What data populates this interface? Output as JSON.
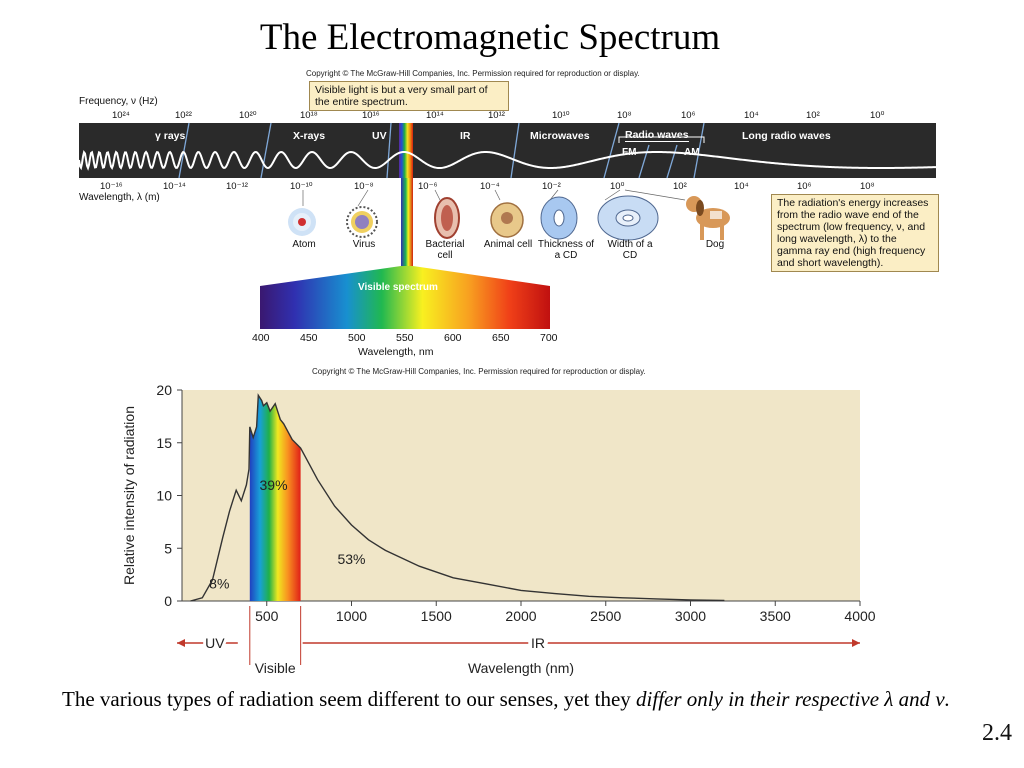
{
  "title": "The Electromagnetic Spectrum",
  "copyright_top": "Copyright © The McGraw-Hill Companies, Inc. Permission required for reproduction or display.",
  "copyright_bottom": "Copyright © The McGraw-Hill Companies, Inc. Permission required for reproduction or display.",
  "visible_note": "Visible light is but a very small part of the entire spectrum.",
  "frequency_label": "Frequency, ν (Hz)",
  "wavelength_label": "Wavelength, λ (m)",
  "frequency_ticks": [
    "10²⁴",
    "10²²",
    "10²⁰",
    "10¹⁸",
    "10¹⁶",
    "10¹⁴",
    "10¹²",
    "10¹⁰",
    "10⁸",
    "10⁶",
    "10⁴",
    "10²",
    "10⁰"
  ],
  "wavelength_ticks": [
    "10⁻¹⁶",
    "10⁻¹⁴",
    "10⁻¹²",
    "10⁻¹⁰",
    "10⁻⁸",
    "10⁻⁶",
    "10⁻⁴",
    "10⁻²",
    "10⁰",
    "10²",
    "10⁴",
    "10⁶",
    "10⁸"
  ],
  "bands": [
    "γ rays",
    "X-rays",
    "UV",
    "IR",
    "Microwaves",
    "Radio waves",
    "Long radio waves"
  ],
  "sub_bands": [
    "FM",
    "AM"
  ],
  "objects": [
    "Atom",
    "Virus",
    "Bacterial cell",
    "Animal cell",
    "Thickness of a CD",
    "Width of a CD",
    "Dog"
  ],
  "energy_note": "The radiation's energy increases from the radio wave end of the spectrum (low frequency, ν, and long wavelength, λ) to the gamma ray end (high frequency and short wavelength).",
  "visible_spectrum": {
    "label": "Visible spectrum",
    "ticks": [
      "400",
      "450",
      "500",
      "550",
      "600",
      "650",
      "700"
    ],
    "axis_label": "Wavelength, nm"
  },
  "caption": {
    "text": "The various types of radiation seem different to our senses, yet they ",
    "emphasis": "differ only in their respective λ and ν."
  },
  "slide_number": "2.4",
  "colors": {
    "band_background": "#2a2a2a",
    "note_background": "#fbeec5",
    "plot_background": "#f0e6c8",
    "curve": "#333333"
  },
  "chart_data": {
    "type": "area",
    "xlabel": "Wavelength (nm)",
    "ylabel": "Relative intensity of radiation",
    "xlim": [
      0,
      4000
    ],
    "ylim": [
      0,
      20
    ],
    "x_ticks": [
      500,
      1000,
      1500,
      2000,
      2500,
      3000,
      3500,
      4000
    ],
    "y_ticks": [
      0,
      5,
      10,
      15,
      20
    ],
    "region_labels": [
      "UV",
      "IR",
      "Visible"
    ],
    "annotations": [
      {
        "text": "8%",
        "x": 220,
        "y": 1.2
      },
      {
        "text": "39%",
        "x": 540,
        "y": 10.5
      },
      {
        "text": "53%",
        "x": 1000,
        "y": 3.5
      }
    ],
    "visible_range": [
      400,
      700
    ],
    "series": [
      {
        "x": [
          50,
          120,
          180,
          240,
          280,
          300,
          320,
          350,
          380,
          395,
          400,
          420,
          440,
          450,
          470,
          480,
          500,
          520,
          550,
          580,
          600,
          650,
          700,
          750,
          800,
          900,
          1000,
          1100,
          1200,
          1400,
          1600,
          1800,
          2000,
          2200,
          2400,
          2600,
          2800,
          3000,
          3200
        ],
        "y": [
          0,
          0.3,
          2,
          6,
          8.5,
          9.5,
          10.5,
          9.5,
          11,
          12.5,
          16.5,
          15.5,
          16.5,
          19.5,
          19,
          18.5,
          18.8,
          18,
          18.7,
          17.2,
          16.8,
          15.3,
          14.5,
          13,
          11.5,
          9,
          7.2,
          5.8,
          4.8,
          3.3,
          2.2,
          1.6,
          1.0,
          0.7,
          0.45,
          0.3,
          0.2,
          0.1,
          0.05
        ]
      }
    ]
  }
}
